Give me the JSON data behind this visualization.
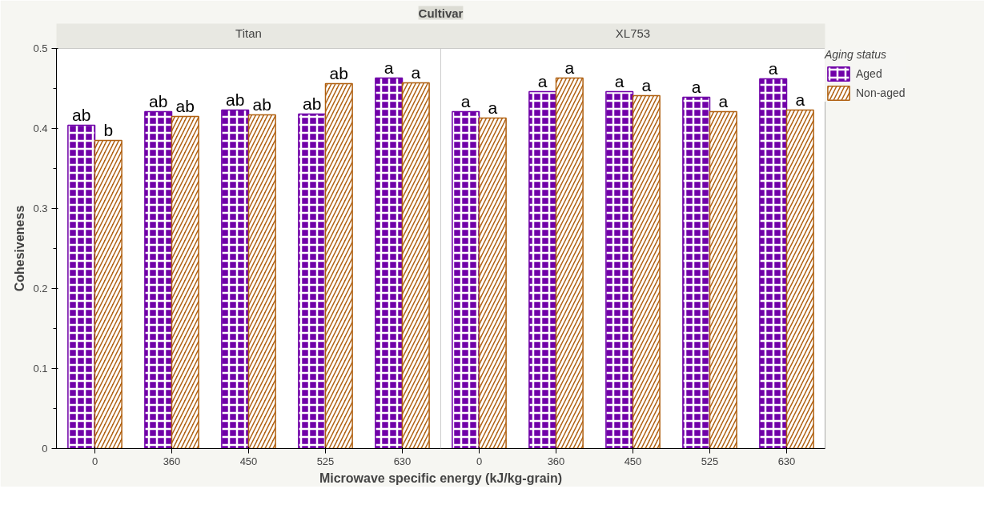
{
  "chart_data": {
    "type": "bar",
    "title": "Cultivar",
    "xlabel": "Microwave specific energy (kJ/kg-grain)",
    "ylabel": "Cohesiveness",
    "legend_title": "Aging status",
    "annotations": [
      "Titan",
      "XL753"
    ],
    "categories": [
      "0",
      "360",
      "450",
      "525",
      "630",
      "0",
      "360",
      "450",
      "525",
      "630"
    ],
    "series": [
      {
        "name": "Aged",
        "color": "#7000a8",
        "values": [
          0.404,
          0.421,
          0.423,
          0.418,
          0.463,
          0.421,
          0.446,
          0.446,
          0.439,
          0.462
        ],
        "value_labels": [
          "ab",
          "ab",
          "ab",
          "ab",
          "a",
          "a",
          "a",
          "a",
          "a",
          "a"
        ]
      },
      {
        "name": "Non-aged",
        "color": "#b06010",
        "values": [
          0.385,
          0.415,
          0.417,
          0.456,
          0.457,
          0.413,
          0.463,
          0.441,
          0.421,
          0.423
        ],
        "value_labels": [
          "b",
          "ab",
          "ab",
          "ab",
          "a",
          "a",
          "a",
          "a",
          "a",
          "a"
        ]
      }
    ],
    "ylim": [
      0,
      0.5
    ],
    "yticks": [
      0,
      0.1,
      0.2,
      0.3,
      0.4,
      0.5
    ],
    "grid": false,
    "legend": "top right"
  }
}
